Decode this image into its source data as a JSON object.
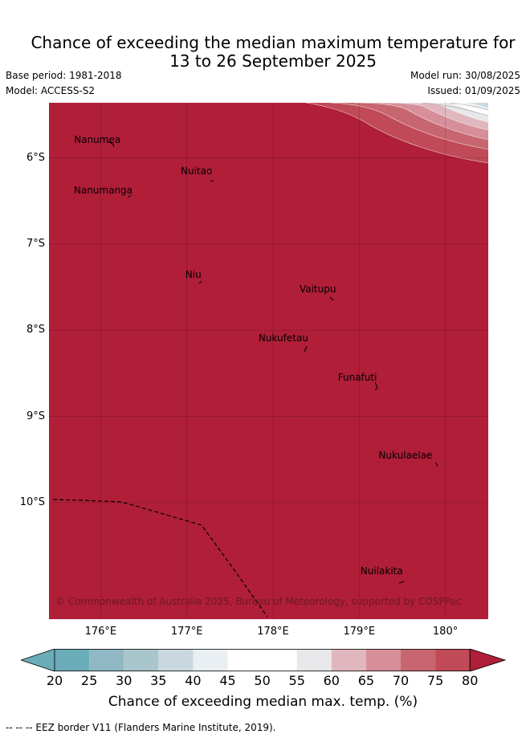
{
  "title_line1": "Chance of exceeding the median maximum temperature for",
  "title_line2": "13 to 26 September 2025",
  "base_period": "Base period: 1981-2018",
  "model": "Model: ACCESS-S2",
  "model_run": "Model run: 30/08/2025",
  "issued": "Issued: 01/09/2025",
  "places": [
    {
      "name": "Nanumea",
      "lon": 176.12,
      "lat": -5.67
    },
    {
      "name": "Nuitao",
      "lon": 177.32,
      "lat": -6.11
    },
    {
      "name": "Nanumanga",
      "lon": 176.34,
      "lat": -6.29
    },
    {
      "name": "Niu",
      "lon": 177.15,
      "lat": -7.29
    },
    {
      "name": "Vaitupu",
      "lon": 178.68,
      "lat": -7.48
    },
    {
      "name": "Nukufetau",
      "lon": 178.39,
      "lat": -8.03
    },
    {
      "name": "Funafuti",
      "lon": 179.2,
      "lat": -8.52
    },
    {
      "name": "Nukulaelae",
      "lon": 179.84,
      "lat": -9.39
    },
    {
      "name": "Nuilakita",
      "lon": 179.48,
      "lat": -10.77
    }
  ],
  "lat_labels": [
    "6°S",
    "7°S",
    "8°S",
    "9°S",
    "10°S"
  ],
  "lon_labels": [
    "176°E",
    "177°E",
    "178°E",
    "179°E",
    "180°"
  ],
  "copyright": "© Commonwealth of Australia 2025, Bureau of Meteorology, supported by COSPPac",
  "colorbar": {
    "ticks": [
      "20",
      "25",
      "30",
      "35",
      "40",
      "45",
      "50",
      "55",
      "60",
      "65",
      "70",
      "75",
      "80"
    ],
    "colors": [
      "#6aacb8",
      "#8fb8c4",
      "#a8c6cc",
      "#c9d8de",
      "#e9eff2",
      "#ffffff",
      "#ffffff",
      "#e8e8ea",
      "#e0b7be",
      "#d68e98",
      "#c86670",
      "#c04a57"
    ],
    "under_color": "#6aacb8",
    "over_color": "#b01e38",
    "label": "Chance of exceeding median max. temp. (%)"
  },
  "map_fill_color": "#b01e38",
  "footnote": "-- -- -- EEZ border V11 (Flanders Marine Institute, 2019)."
}
